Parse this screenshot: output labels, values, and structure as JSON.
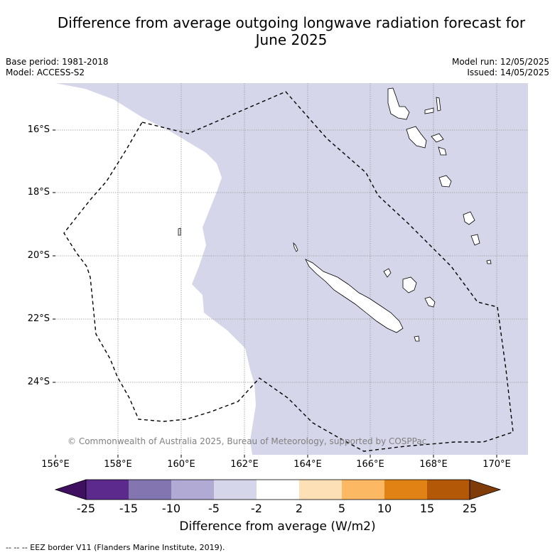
{
  "title_line1": "Difference from average outgoing longwave radiation forecast for",
  "title_line2": "June 2025",
  "base_period": "Base period: 1981-2018",
  "model": "Model: ACCESS-S2",
  "model_run": "Model run: 12/05/2025",
  "issued": "Issued: 14/05/2025",
  "lat_labels": [
    "16°S",
    "18°S",
    "20°S",
    "22°S",
    "24°S"
  ],
  "lon_labels": [
    "156°E",
    "158°E",
    "160°E",
    "162°E",
    "164°E",
    "166°E",
    "168°E",
    "170°E"
  ],
  "copyright": "© Commonwealth of Australia 2025, Bureau of Meteorology, supported by COSPPac",
  "colorbar": {
    "ticks": [
      "-25",
      "-15",
      "-10",
      "-5",
      "-2",
      "2",
      "5",
      "10",
      "15",
      "25"
    ],
    "title": "Difference from average (W/m2)",
    "colors": [
      "#3f1060",
      "#5b2a8c",
      "#8275b0",
      "#b0aad4",
      "#d6d6ea",
      "#ffffff",
      "#fee0b6",
      "#fdb863",
      "#e08214",
      "#b35806",
      "#7f3b08"
    ]
  },
  "legend": "--  --  -- EEZ border V11 (Flanders Marine Institute, 2019)."
}
